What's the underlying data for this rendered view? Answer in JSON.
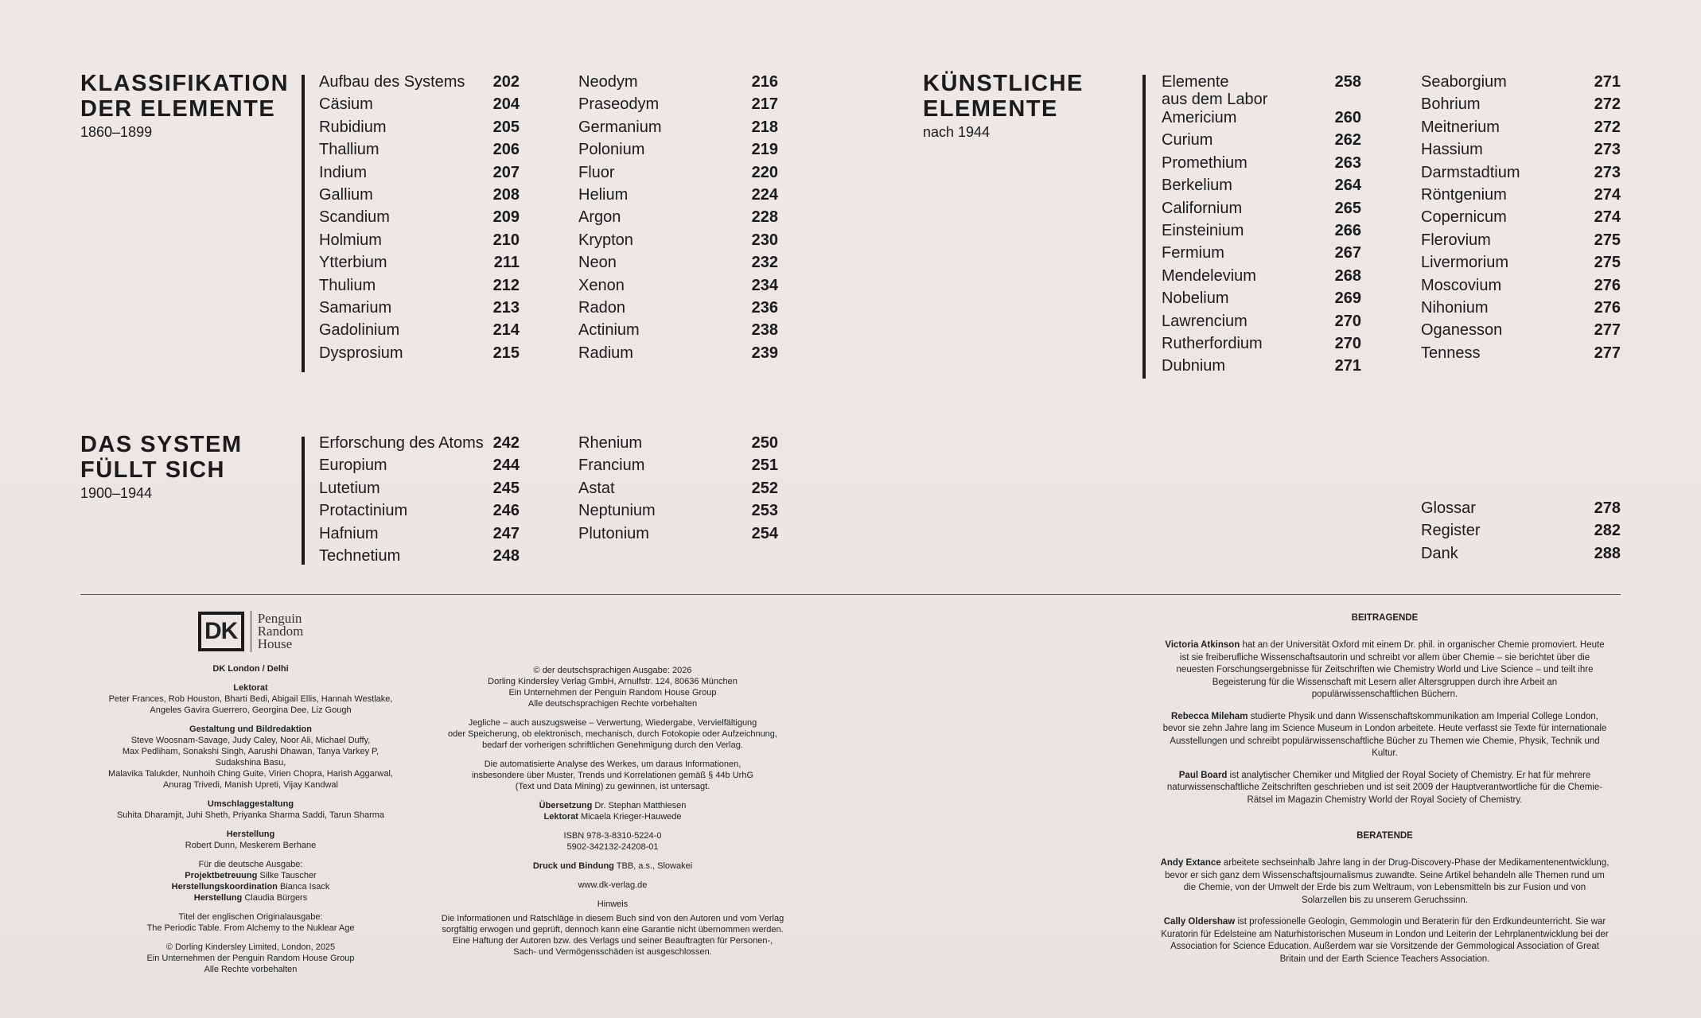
{
  "sections": [
    {
      "title": "KLASSIFIKATION\nDER ELEMENTE",
      "subtitle": "1860–1899",
      "col1": [
        [
          "Aufbau des Systems",
          "202"
        ],
        [
          "Cäsium",
          "204"
        ],
        [
          "Rubidium",
          "205"
        ],
        [
          "Thallium",
          "206"
        ],
        [
          "Indium",
          "207"
        ],
        [
          "Gallium",
          "208"
        ],
        [
          "Scandium",
          "209"
        ],
        [
          "Holmium",
          "210"
        ],
        [
          "Ytterbium",
          "211"
        ],
        [
          "Thulium",
          "212"
        ],
        [
          "Samarium",
          "213"
        ],
        [
          "Gadolinium",
          "214"
        ],
        [
          "Dysprosium",
          "215"
        ]
      ],
      "col2": [
        [
          "Neodym",
          "216"
        ],
        [
          "Praseodym",
          "217"
        ],
        [
          "Germanium",
          "218"
        ],
        [
          "Polonium",
          "219"
        ],
        [
          "Fluor",
          "220"
        ],
        [
          "Helium",
          "224"
        ],
        [
          "Argon",
          "228"
        ],
        [
          "Krypton",
          "230"
        ],
        [
          "Neon",
          "232"
        ],
        [
          "Xenon",
          "234"
        ],
        [
          "Radon",
          "236"
        ],
        [
          "Actinium",
          "238"
        ],
        [
          "Radium",
          "239"
        ]
      ]
    },
    {
      "title": "DAS SYSTEM\nFÜLLT SICH",
      "subtitle": "1900–1944",
      "col1": [
        [
          "Erforschung des Atoms",
          "242"
        ],
        [
          "Europium",
          "244"
        ],
        [
          "Lutetium",
          "245"
        ],
        [
          "Protactinium",
          "246"
        ],
        [
          "Hafnium",
          "247"
        ],
        [
          "Technetium",
          "248"
        ]
      ],
      "col2": [
        [
          "Rhenium",
          "250"
        ],
        [
          "Francium",
          "251"
        ],
        [
          "Astat",
          "252"
        ],
        [
          "Neptunium",
          "253"
        ],
        [
          "Plutonium",
          "254"
        ]
      ]
    },
    {
      "title": "KÜNSTLICHE\nELEMENTE",
      "subtitle": "nach 1944",
      "col1": [
        [
          "Elemente\naus dem Labor",
          "258"
        ],
        [
          "Americium",
          "260"
        ],
        [
          "Curium",
          "262"
        ],
        [
          "Promethium",
          "263"
        ],
        [
          "Berkelium",
          "264"
        ],
        [
          "Californium",
          "265"
        ],
        [
          "Einsteinium",
          "266"
        ],
        [
          "Fermium",
          "267"
        ],
        [
          "Mendelevium",
          "268"
        ],
        [
          "Nobelium",
          "269"
        ],
        [
          "Lawrencium",
          "270"
        ],
        [
          "Rutherfordium",
          "270"
        ],
        [
          "Dubnium",
          "271"
        ]
      ],
      "col2": [
        [
          "Seaborgium",
          "271"
        ],
        [
          "Bohrium",
          "272"
        ],
        [
          "Meitnerium",
          "272"
        ],
        [
          "Hassium",
          "273"
        ],
        [
          "Darmstadtium",
          "273"
        ],
        [
          "Röntgenium",
          "274"
        ],
        [
          "Copernicum",
          "274"
        ],
        [
          "Flerovium",
          "275"
        ],
        [
          "Livermorium",
          "275"
        ],
        [
          "Moscovium",
          "276"
        ],
        [
          "Nihonium",
          "276"
        ],
        [
          "Oganesson",
          "277"
        ],
        [
          "Tenness",
          "277"
        ]
      ]
    }
  ],
  "appendix": [
    [
      "Glossar",
      "278"
    ],
    [
      "Register",
      "282"
    ],
    [
      "Dank",
      "288"
    ]
  ],
  "logo": {
    "dk": "DK",
    "prh": "Penguin\nRandom\nHouse"
  },
  "credits_left": [
    {
      "head": "DK London / Delhi",
      "text": ""
    },
    {
      "head": "Lektorat",
      "text": "Peter Frances, Rob Houston, Bharti Bedi, Abigail Ellis, Hannah Westlake,\nAngeles Gavira Guerrero, Georgina Dee, Liz Gough"
    },
    {
      "head": "Gestaltung und Bildredaktion",
      "text": "Steve Woosnam-Savage, Judy Caley, Noor Ali, Michael Duffy,\nMax Pedliham, Sonakshi Singh, Aarushi Dhawan, Tanya Varkey P, Sudakshina Basu,\nMalavika Talukder, Nunhoih Ching Guite, Virien Chopra, Harish Aggarwal,\nAnurag Trivedi, Manish Upreti, Vijay Kandwal"
    },
    {
      "head": "Umschlaggestaltung",
      "text": "Suhita Dharamjit, Juhi Sheth, Priyanka Sharma Saddi, Tarun Sharma"
    },
    {
      "head": "Herstellung",
      "text": "Robert Dunn, Meskerem Berhane"
    }
  ],
  "german_edition": {
    "intro": "Für die deutsche Ausgabe:",
    "lines": [
      [
        "Projektbetreuung",
        "Silke Tauscher"
      ],
      [
        "Herstellungskoordination",
        "Bianca Isack"
      ],
      [
        "Herstellung",
        "Claudia Bürgers"
      ]
    ]
  },
  "original_title": "Titel der englischen Originalausgabe:\nThe Periodic Table. From Alchemy to the Nuklear Age",
  "copyright_uk": "© Dorling Kindersley Limited, London, 2025\nEin Unternehmen der Penguin Random House Group\nAlle Rechte vorbehalten",
  "middle": {
    "copyright_de": "© der deutschsprachigen Ausgabe: 2026\nDorling Kindersley Verlag GmbH, Arnulfstr. 124, 80636 München\nEin Unternehmen der Penguin Random House Group\nAlle deutschsprachigen Rechte vorbehalten",
    "rights": "Jegliche – auch auszugsweise – Verwertung, Wiedergabe, Vervielfältigung\noder Speicherung, ob elektronisch, mechanisch, durch Fotokopie oder Aufzeichnung,\nbedarf der vorherigen schriftlichen Genehmigung durch den Verlag.",
    "tdm": "Die automatisierte Analyse des Werkes, um daraus Informationen,\ninsbesondere über Muster, Trends und Korrelationen gemäß § 44b UrhG\n(Text und Data Mining) zu gewinnen, ist untersagt.",
    "translation": [
      "Übersetzung",
      "Dr. Stephan Matthiesen"
    ],
    "editor": [
      "Lektorat",
      "Micaela Krieger-Hauwede"
    ],
    "isbn": "ISBN 978-3-8310-5224-0\n5902-342132-24208-01",
    "print": [
      "Druck und Bindung",
      "TBB, a.s., Slowakei"
    ],
    "url": "www.dk-verlag.de",
    "notice_head": "Hinweis",
    "notice": "Die Informationen und Ratschläge in diesem Buch sind von den Autoren und vom Verlag\nsorgfältig erwogen und geprüft, dennoch kann eine Garantie nicht übernommen werden.\nEine Haftung der Autoren bzw. des Verlags und seiner Beauftragten für Personen-,\nSach- und Vermögensschäden ist ausgeschlossen."
  },
  "contributors": {
    "head": "BEITRAGENDE",
    "people": [
      [
        "Victoria Atkinson",
        "hat an der Universität Oxford mit einem Dr. phil. in organischer Chemie promoviert. Heute ist sie freiberufliche Wissenschaftsautorin und schreibt vor allem über Chemie – sie berichtet über die neuesten Forschungsergebnisse für Zeitschriften wie Chemistry World und Live Science – und teilt ihre Begeisterung für die Wissenschaft mit Lesern aller Altersgruppen durch ihre Arbeit an populärwissenschaftlichen Büchern."
      ],
      [
        "Rebecca Mileham",
        "studierte Physik und dann Wissenschaftskommunikation am Imperial College London, bevor sie zehn Jahre lang im Science Museum in London arbeitete. Heute verfasst sie Texte für internationale Ausstellungen und schreibt populärwissenschaftliche Bücher zu Themen wie Chemie, Physik, Technik und Kultur."
      ],
      [
        "Paul Board",
        "ist analytischer Chemiker und Mitglied der Royal Society of Chemistry. Er hat für mehrere naturwissenschaftliche Zeitschriften geschrieben und ist seit 2009 der Hauptverantwortliche für die Chemie-Rätsel im Magazin Chemistry World der Royal Society of Chemistry."
      ]
    ]
  },
  "advisors": {
    "head": "BERATENDE",
    "people": [
      [
        "Andy Extance",
        "arbeitete sechseinhalb Jahre lang in der Drug-Discovery-Phase der Medikamentenentwicklung, bevor er sich ganz dem Wissenschaftsjournalismus zuwandte. Seine Artikel behandeln alle Themen rund um die Chemie, von der Umwelt der Erde bis zum Weltraum, von Lebensmitteln bis zur Fusion und von Solarzellen bis zu unserem Geruchssinn."
      ],
      [
        "Cally Oldershaw",
        "ist professionelle Geologin, Gemmologin und Beraterin für den Erdkundeunterricht. Sie war Kuratorin für Edelsteine am Naturhistorischen Museum in London und Leiterin der Lehrplanentwicklung bei der Association for Science Education. Außerdem war sie Vorsitzende der Gemmological Association of Great Britain und der Earth Science Teachers Association."
      ]
    ]
  }
}
